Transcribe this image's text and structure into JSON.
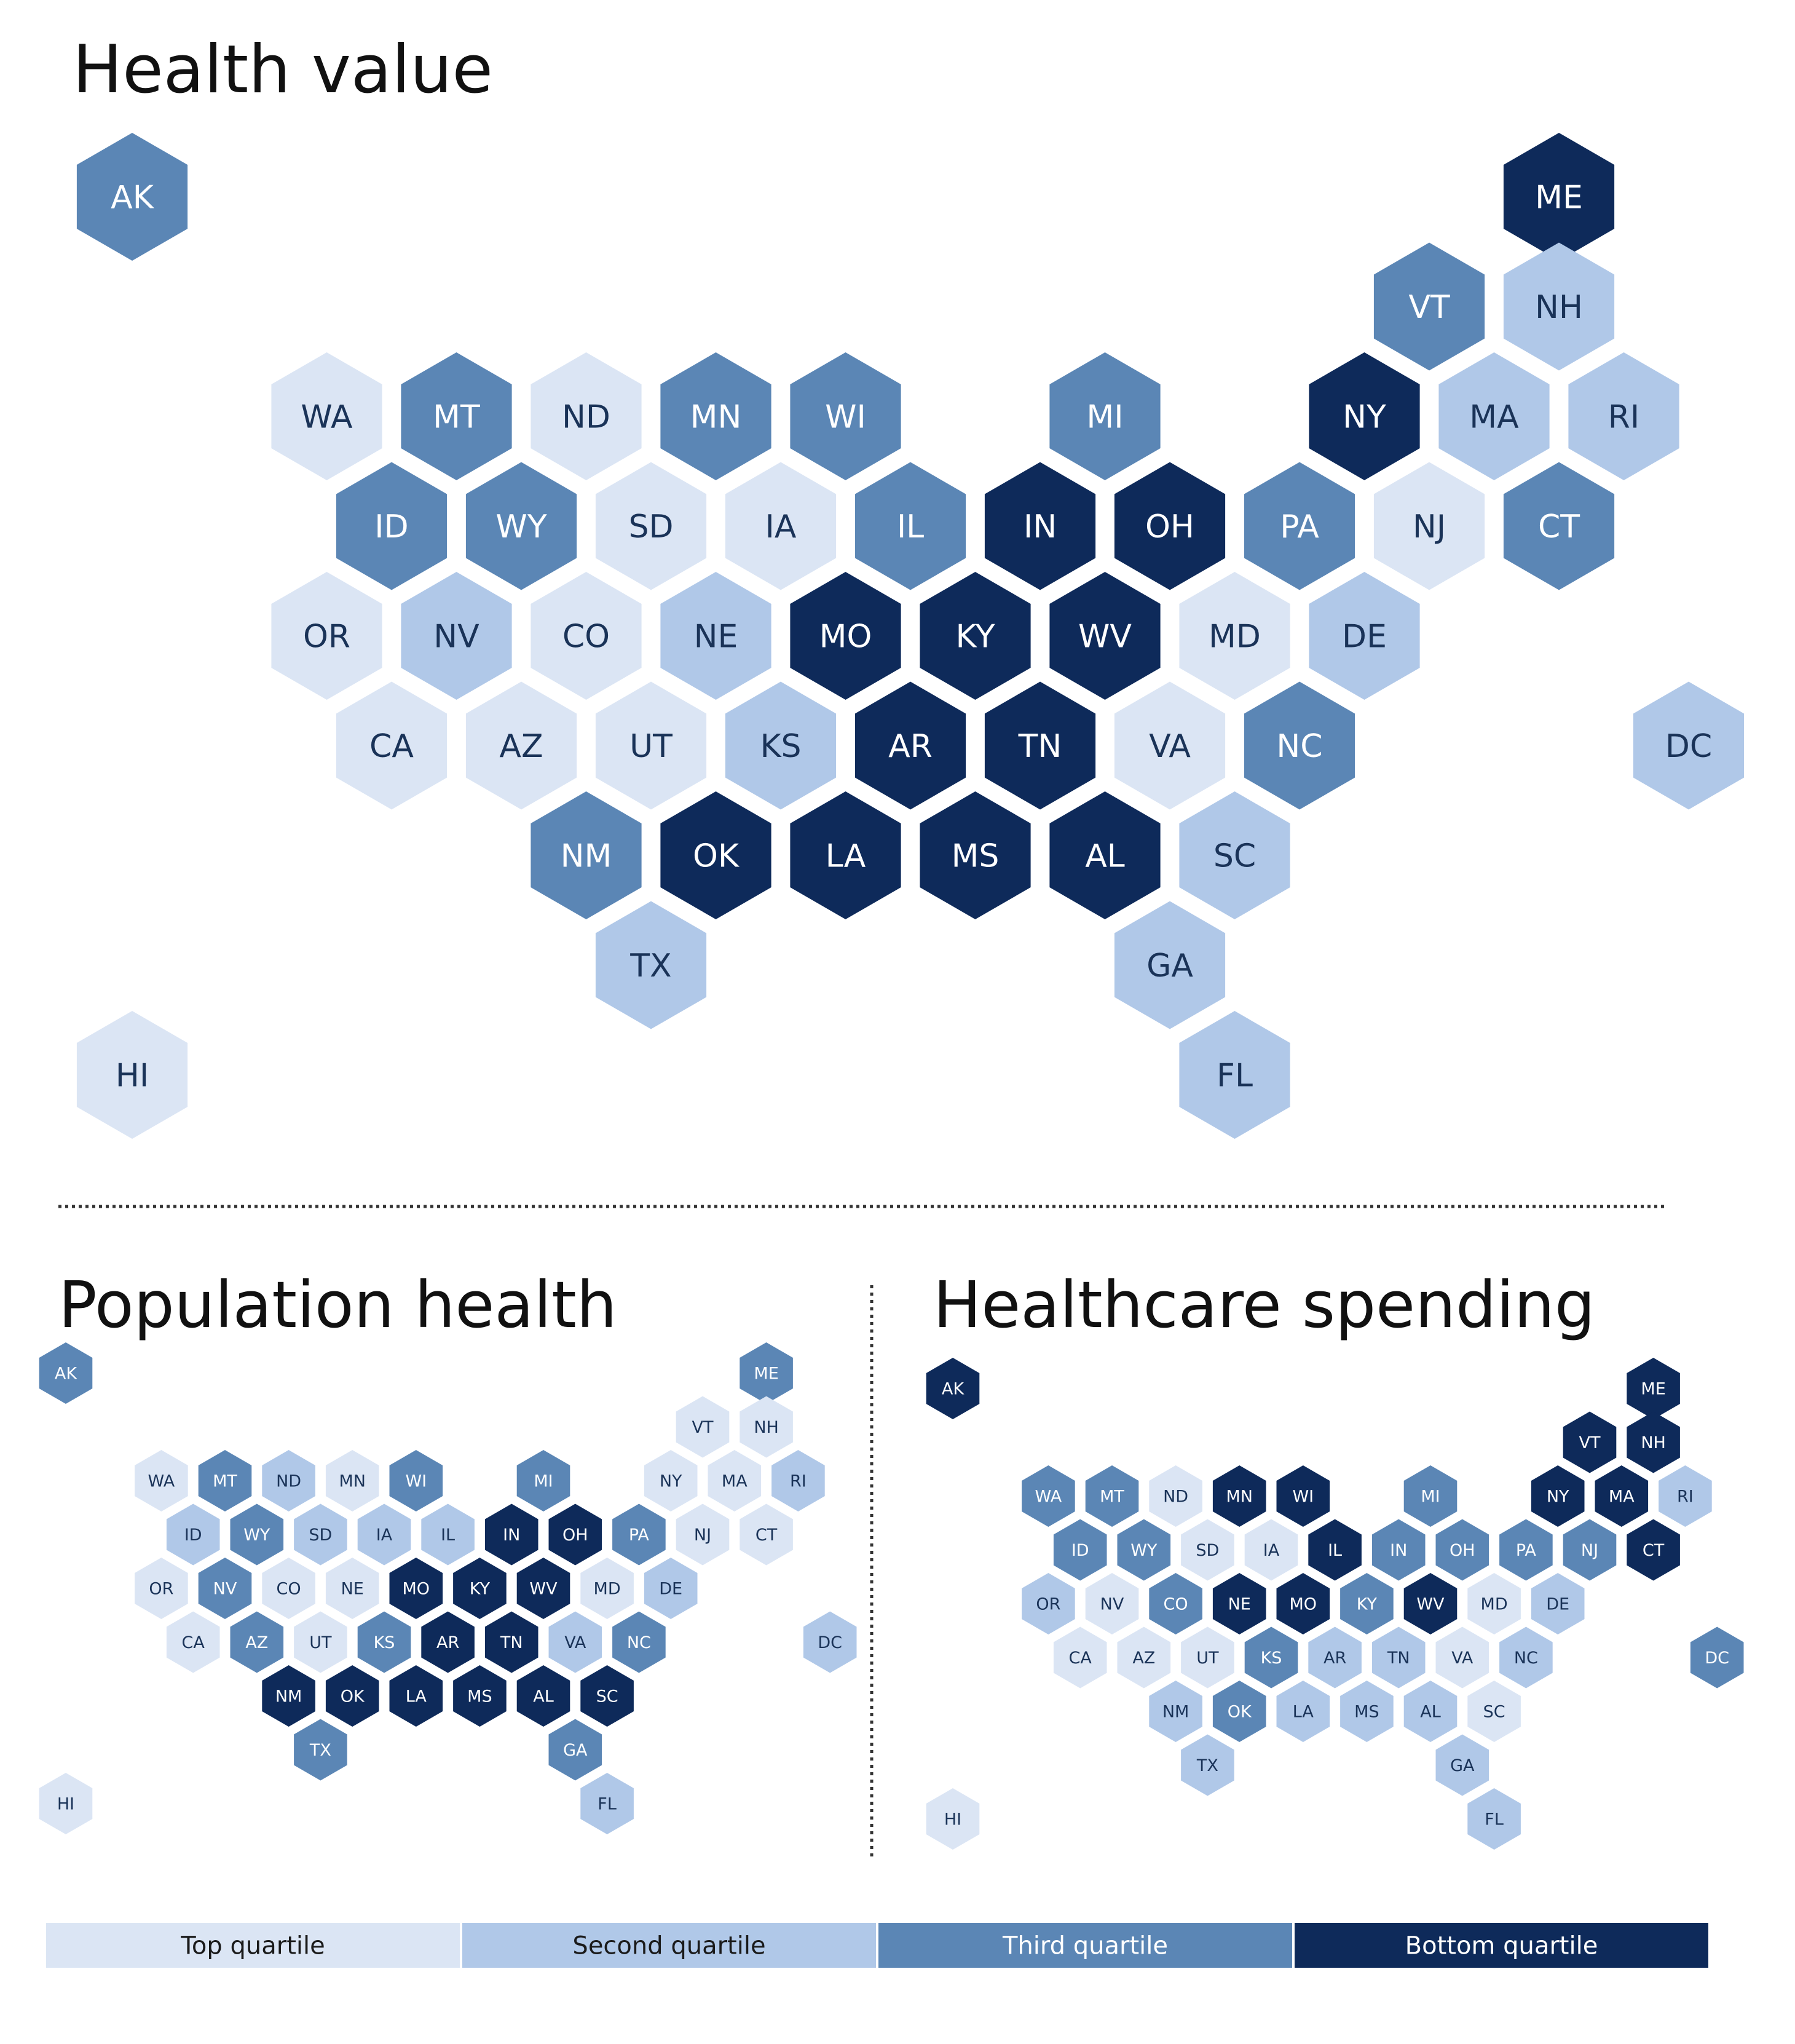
{
  "colors": {
    "q1": "#dbe5f4",
    "q2": "#b0c8e8",
    "q3": "#5b86b5",
    "q4": "#0e2a5a",
    "background": "#ffffff",
    "divider": "#333333"
  },
  "legend": [
    {
      "key": "q1",
      "label": "Top quartile"
    },
    {
      "key": "q2",
      "label": "Second quartile"
    },
    {
      "key": "q3",
      "label": "Third quartile"
    },
    {
      "key": "q4",
      "label": "Bottom quartile"
    }
  ],
  "maps": [
    {
      "id": "health-value",
      "title": "Health value",
      "quartiles": {
        "AK": "q3",
        "ME": "q4",
        "VT": "q3",
        "NH": "q2",
        "WA": "q1",
        "MT": "q3",
        "ND": "q1",
        "MN": "q3",
        "WI": "q3",
        "MI": "q3",
        "NY": "q4",
        "MA": "q2",
        "RI": "q2",
        "ID": "q3",
        "WY": "q3",
        "SD": "q1",
        "IA": "q1",
        "IL": "q3",
        "IN": "q4",
        "OH": "q4",
        "PA": "q3",
        "NJ": "q1",
        "CT": "q3",
        "OR": "q1",
        "NV": "q2",
        "CO": "q1",
        "NE": "q2",
        "MO": "q4",
        "KY": "q4",
        "WV": "q4",
        "MD": "q1",
        "DE": "q2",
        "CA": "q1",
        "AZ": "q1",
        "UT": "q1",
        "KS": "q2",
        "AR": "q4",
        "TN": "q4",
        "VA": "q1",
        "NC": "q3",
        "DC": "q2",
        "NM": "q3",
        "OK": "q4",
        "LA": "q4",
        "MS": "q4",
        "AL": "q4",
        "SC": "q2",
        "TX": "q2",
        "GA": "q2",
        "HI": "q1",
        "FL": "q2"
      }
    },
    {
      "id": "population-health",
      "title": "Population health",
      "quartiles": {
        "AK": "q3",
        "ME": "q3",
        "VT": "q1",
        "NH": "q1",
        "WA": "q1",
        "MT": "q3",
        "ND": "q2",
        "MN": "q1",
        "WI": "q3",
        "MI": "q3",
        "NY": "q1",
        "MA": "q1",
        "RI": "q2",
        "ID": "q2",
        "WY": "q3",
        "SD": "q2",
        "IA": "q2",
        "IL": "q2",
        "IN": "q4",
        "OH": "q4",
        "PA": "q3",
        "NJ": "q1",
        "CT": "q1",
        "OR": "q1",
        "NV": "q3",
        "CO": "q1",
        "NE": "q1",
        "MO": "q4",
        "KY": "q4",
        "WV": "q4",
        "MD": "q1",
        "DE": "q2",
        "CA": "q1",
        "AZ": "q3",
        "UT": "q1",
        "KS": "q3",
        "AR": "q4",
        "TN": "q4",
        "VA": "q2",
        "NC": "q3",
        "DC": "q2",
        "NM": "q4",
        "OK": "q4",
        "LA": "q4",
        "MS": "q4",
        "AL": "q4",
        "SC": "q4",
        "TX": "q3",
        "GA": "q3",
        "HI": "q1",
        "FL": "q2"
      }
    },
    {
      "id": "healthcare-spending",
      "title": "Healthcare spending",
      "quartiles": {
        "AK": "q4",
        "ME": "q4",
        "VT": "q4",
        "NH": "q4",
        "WA": "q3",
        "MT": "q3",
        "ND": "q1",
        "MN": "q4",
        "WI": "q4",
        "MI": "q3",
        "NY": "q4",
        "MA": "q4",
        "RI": "q2",
        "ID": "q3",
        "WY": "q3",
        "SD": "q1",
        "IA": "q1",
        "IL": "q4",
        "IN": "q3",
        "OH": "q3",
        "PA": "q3",
        "NJ": "q3",
        "CT": "q4",
        "OR": "q2",
        "NV": "q1",
        "CO": "q3",
        "NE": "q4",
        "MO": "q4",
        "KY": "q3",
        "WV": "q4",
        "MD": "q1",
        "DE": "q2",
        "CA": "q1",
        "AZ": "q1",
        "UT": "q1",
        "KS": "q3",
        "AR": "q2",
        "TN": "q2",
        "VA": "q1",
        "NC": "q2",
        "DC": "q3",
        "NM": "q2",
        "OK": "q3",
        "LA": "q2",
        "MS": "q2",
        "AL": "q2",
        "SC": "q1",
        "TX": "q2",
        "GA": "q2",
        "HI": "q1",
        "FL": "q2"
      }
    }
  ]
}
